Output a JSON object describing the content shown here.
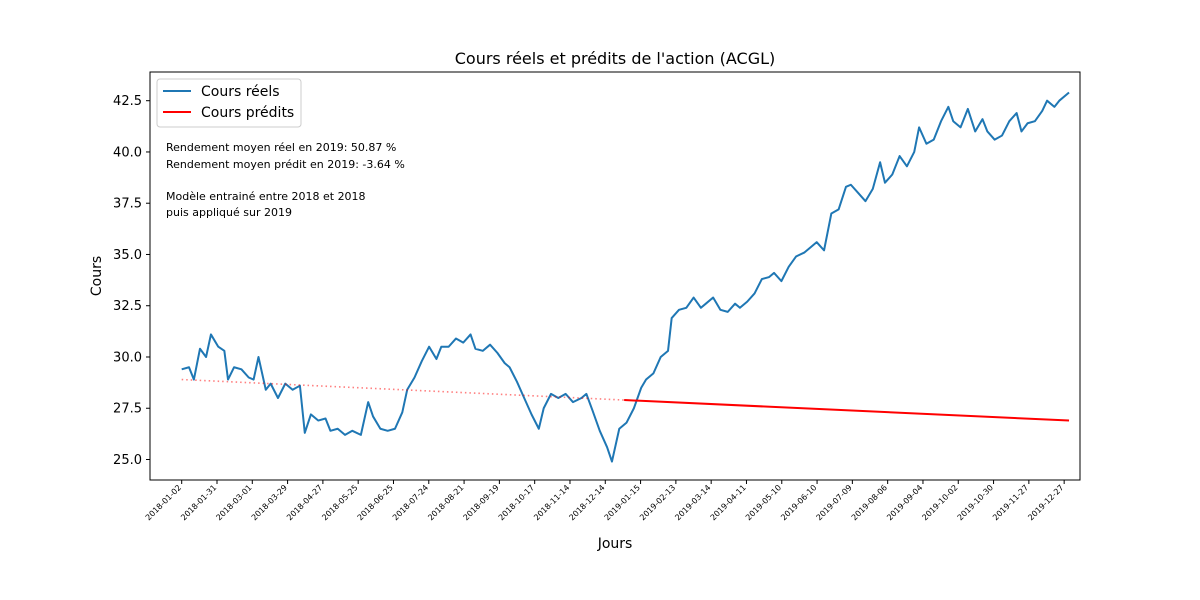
{
  "chart_data": {
    "type": "line",
    "title": "Cours réels et prédits de l'action (ACGL)",
    "xlabel": "Jours",
    "ylabel": "Cours",
    "ylim": [
      24.0,
      43.9
    ],
    "yticks": [
      25.0,
      27.5,
      30.0,
      32.5,
      35.0,
      37.5,
      40.0,
      42.5
    ],
    "ytick_labels": [
      "25.0",
      "27.5",
      "30.0",
      "32.5",
      "35.0",
      "37.5",
      "40.0",
      "42.5"
    ],
    "xlim": [
      "2017-12-07",
      "2020-01-09"
    ],
    "xtick_labels": [
      "2018-01-02",
      "2018-01-31",
      "2018-03-01",
      "2018-03-29",
      "2018-04-27",
      "2018-05-25",
      "2018-06-25",
      "2018-07-24",
      "2018-08-21",
      "2018-09-19",
      "2018-10-17",
      "2018-11-14",
      "2018-12-14",
      "2019-01-15",
      "2019-02-13",
      "2019-03-14",
      "2019-04-11",
      "2019-05-10",
      "2019-06-10",
      "2019-07-09",
      "2019-08-06",
      "2019-09-04",
      "2019-10-02",
      "2019-10-30",
      "2019-11-27",
      "2019-12-27"
    ],
    "grid": false,
    "legend_position": "top-left",
    "series": [
      {
        "name": "Cours réels",
        "color": "#1f77b4",
        "style": "solid",
        "points": [
          [
            "2018-01-02",
            29.4
          ],
          [
            "2018-01-08",
            29.5
          ],
          [
            "2018-01-12",
            28.9
          ],
          [
            "2018-01-17",
            30.4
          ],
          [
            "2018-01-22",
            30.0
          ],
          [
            "2018-01-26",
            31.1
          ],
          [
            "2018-02-01",
            30.5
          ],
          [
            "2018-02-06",
            30.3
          ],
          [
            "2018-02-09",
            28.9
          ],
          [
            "2018-02-14",
            29.5
          ],
          [
            "2018-02-20",
            29.4
          ],
          [
            "2018-02-26",
            29.0
          ],
          [
            "2018-03-02",
            28.9
          ],
          [
            "2018-03-06",
            30.0
          ],
          [
            "2018-03-12",
            28.4
          ],
          [
            "2018-03-16",
            28.7
          ],
          [
            "2018-03-22",
            28.0
          ],
          [
            "2018-03-28",
            28.7
          ],
          [
            "2018-04-03",
            28.4
          ],
          [
            "2018-04-09",
            28.6
          ],
          [
            "2018-04-13",
            26.3
          ],
          [
            "2018-04-18",
            27.2
          ],
          [
            "2018-04-24",
            26.9
          ],
          [
            "2018-04-30",
            27.0
          ],
          [
            "2018-05-04",
            26.4
          ],
          [
            "2018-05-10",
            26.5
          ],
          [
            "2018-05-16",
            26.2
          ],
          [
            "2018-05-22",
            26.4
          ],
          [
            "2018-05-29",
            26.2
          ],
          [
            "2018-06-04",
            27.8
          ],
          [
            "2018-06-08",
            27.1
          ],
          [
            "2018-06-14",
            26.5
          ],
          [
            "2018-06-20",
            26.4
          ],
          [
            "2018-06-26",
            26.5
          ],
          [
            "2018-07-02",
            27.3
          ],
          [
            "2018-07-06",
            28.4
          ],
          [
            "2018-07-12",
            29.0
          ],
          [
            "2018-07-18",
            29.8
          ],
          [
            "2018-07-24",
            30.5
          ],
          [
            "2018-07-30",
            29.9
          ],
          [
            "2018-08-03",
            30.5
          ],
          [
            "2018-08-09",
            30.5
          ],
          [
            "2018-08-15",
            30.9
          ],
          [
            "2018-08-21",
            30.7
          ],
          [
            "2018-08-27",
            31.1
          ],
          [
            "2018-08-31",
            30.4
          ],
          [
            "2018-09-06",
            30.3
          ],
          [
            "2018-09-12",
            30.6
          ],
          [
            "2018-09-18",
            30.2
          ],
          [
            "2018-09-24",
            29.7
          ],
          [
            "2018-09-28",
            29.5
          ],
          [
            "2018-10-04",
            28.8
          ],
          [
            "2018-10-10",
            28.0
          ],
          [
            "2018-10-16",
            27.2
          ],
          [
            "2018-10-22",
            26.5
          ],
          [
            "2018-10-26",
            27.5
          ],
          [
            "2018-11-01",
            28.2
          ],
          [
            "2018-11-07",
            28.0
          ],
          [
            "2018-11-13",
            28.2
          ],
          [
            "2018-11-19",
            27.8
          ],
          [
            "2018-11-26",
            28.0
          ],
          [
            "2018-11-30",
            28.2
          ],
          [
            "2018-12-05",
            27.4
          ],
          [
            "2018-12-11",
            26.4
          ],
          [
            "2018-12-17",
            25.6
          ],
          [
            "2018-12-21",
            24.9
          ],
          [
            "2018-12-27",
            26.5
          ],
          [
            "2019-01-02",
            26.8
          ],
          [
            "2019-01-08",
            27.5
          ],
          [
            "2019-01-14",
            28.5
          ],
          [
            "2019-01-18",
            28.9
          ],
          [
            "2019-01-24",
            29.2
          ],
          [
            "2019-01-30",
            30.0
          ],
          [
            "2019-02-05",
            30.3
          ],
          [
            "2019-02-08",
            31.9
          ],
          [
            "2019-02-14",
            32.3
          ],
          [
            "2019-02-20",
            32.4
          ],
          [
            "2019-02-26",
            32.9
          ],
          [
            "2019-03-04",
            32.4
          ],
          [
            "2019-03-08",
            32.6
          ],
          [
            "2019-03-14",
            32.9
          ],
          [
            "2019-03-20",
            32.3
          ],
          [
            "2019-03-26",
            32.2
          ],
          [
            "2019-04-01",
            32.6
          ],
          [
            "2019-04-05",
            32.4
          ],
          [
            "2019-04-11",
            32.7
          ],
          [
            "2019-04-17",
            33.1
          ],
          [
            "2019-04-23",
            33.8
          ],
          [
            "2019-04-29",
            33.9
          ],
          [
            "2019-05-03",
            34.1
          ],
          [
            "2019-05-09",
            33.7
          ],
          [
            "2019-05-15",
            34.4
          ],
          [
            "2019-05-21",
            34.9
          ],
          [
            "2019-05-28",
            35.1
          ],
          [
            "2019-06-03",
            35.4
          ],
          [
            "2019-06-07",
            35.6
          ],
          [
            "2019-06-13",
            35.2
          ],
          [
            "2019-06-19",
            37.0
          ],
          [
            "2019-06-25",
            37.2
          ],
          [
            "2019-07-01",
            38.3
          ],
          [
            "2019-07-05",
            38.4
          ],
          [
            "2019-07-11",
            38.0
          ],
          [
            "2019-07-17",
            37.6
          ],
          [
            "2019-07-23",
            38.2
          ],
          [
            "2019-07-29",
            39.5
          ],
          [
            "2019-08-02",
            38.5
          ],
          [
            "2019-08-08",
            38.9
          ],
          [
            "2019-08-14",
            39.8
          ],
          [
            "2019-08-20",
            39.3
          ],
          [
            "2019-08-26",
            40.0
          ],
          [
            "2019-08-30",
            41.2
          ],
          [
            "2019-09-05",
            40.4
          ],
          [
            "2019-09-11",
            40.6
          ],
          [
            "2019-09-17",
            41.5
          ],
          [
            "2019-09-23",
            42.2
          ],
          [
            "2019-09-27",
            41.5
          ],
          [
            "2019-10-03",
            41.2
          ],
          [
            "2019-10-09",
            42.1
          ],
          [
            "2019-10-15",
            41.0
          ],
          [
            "2019-10-21",
            41.6
          ],
          [
            "2019-10-25",
            41.0
          ],
          [
            "2019-10-31",
            40.6
          ],
          [
            "2019-11-06",
            40.8
          ],
          [
            "2019-11-12",
            41.5
          ],
          [
            "2019-11-18",
            41.9
          ],
          [
            "2019-11-22",
            41.0
          ],
          [
            "2019-11-27",
            41.4
          ],
          [
            "2019-12-03",
            41.5
          ],
          [
            "2019-12-09",
            42.0
          ],
          [
            "2019-12-13",
            42.5
          ],
          [
            "2019-12-19",
            42.2
          ],
          [
            "2019-12-23",
            42.5
          ],
          [
            "2019-12-31",
            42.9
          ]
        ]
      },
      {
        "name": "Cours prédits",
        "color": "#ff0000",
        "style": "solid",
        "points": [
          [
            "2018-12-31",
            27.9
          ],
          [
            "2019-12-31",
            26.9
          ]
        ]
      },
      {
        "name": "",
        "color": "#ff0000",
        "style": "dotted",
        "points": [
          [
            "2018-01-02",
            28.9
          ],
          [
            "2018-12-31",
            27.9
          ]
        ]
      }
    ],
    "annotations": [
      "Rendement moyen réel en 2019: 50.87 %",
      "Rendement moyen prédit en 2019: -3.64 %",
      "Modèle entrainé entre 2018 et 2018",
      "puis appliqué sur 2019"
    ]
  }
}
